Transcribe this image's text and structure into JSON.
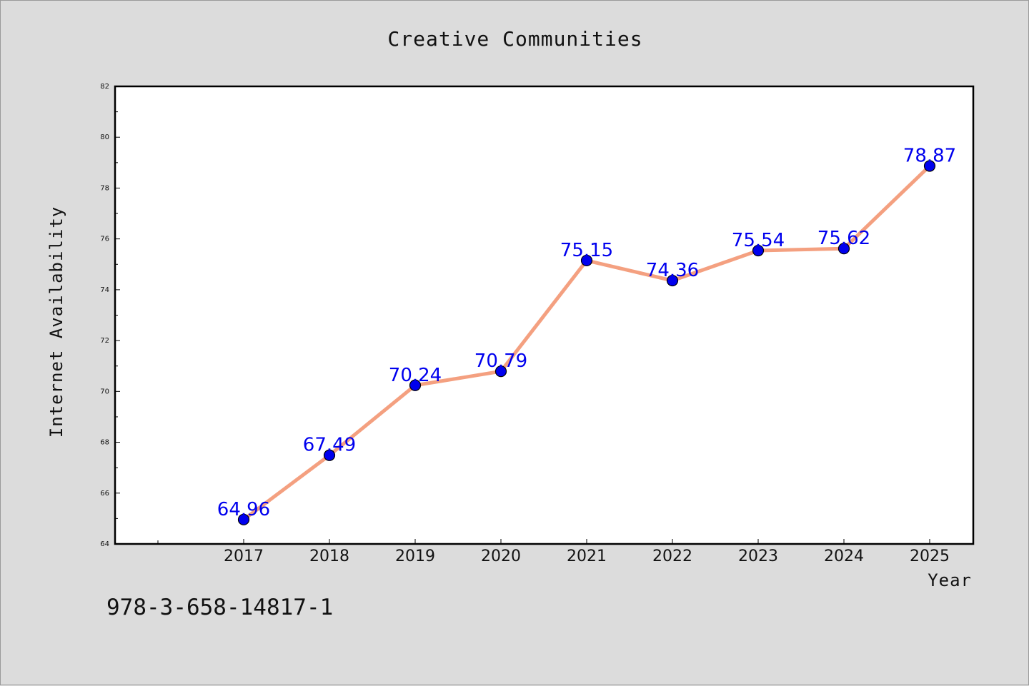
{
  "chart_data": {
    "type": "line",
    "title": "Creative Communities",
    "xlabel": "Year",
    "ylabel": "Internet Availability",
    "categories": [
      "2017",
      "2018",
      "2019",
      "2020",
      "2021",
      "2022",
      "2023",
      "2024",
      "2025"
    ],
    "values": [
      64.96,
      67.49,
      70.24,
      70.79,
      75.15,
      74.36,
      75.54,
      75.62,
      78.87
    ],
    "data_labels": [
      "64.96",
      "67.49",
      "70.24",
      "70.79",
      "75.15",
      "74.36",
      "75.54",
      "75.62",
      "78.87"
    ],
    "ylim": [
      64,
      82
    ],
    "yticks": [
      "64",
      "66",
      "68",
      "70",
      "72",
      "74",
      "76",
      "78",
      "80",
      "82"
    ],
    "line_color": "#f4a080",
    "marker_color": "#0000ee",
    "label_color": "#0000ee",
    "grid": false
  },
  "footer": {
    "code": "978-3-658-14817-1"
  }
}
